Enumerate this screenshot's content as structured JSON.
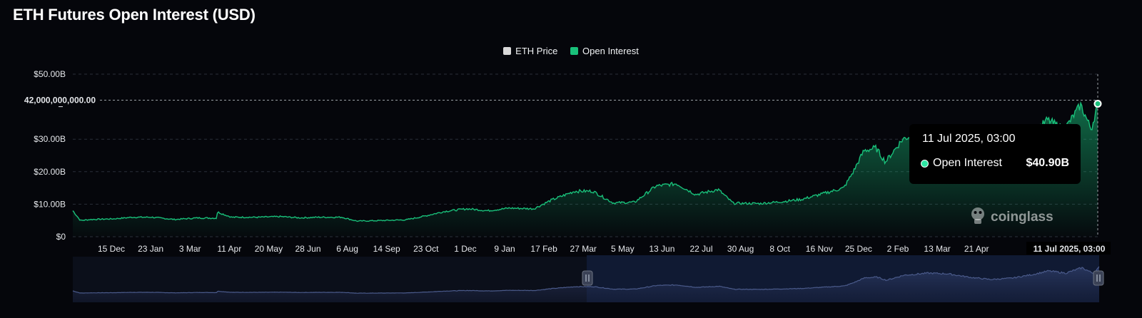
{
  "title": "ETH Futures Open Interest (USD)",
  "legend": [
    {
      "label": "ETH Price",
      "color": "#d9d9d9"
    },
    {
      "label": "Open Interest",
      "color": "#19c07a"
    }
  ],
  "crosshair": {
    "y_label": "42,000,000,000.00",
    "x_label": "11 Jul 2025, 03:00"
  },
  "tooltip": {
    "date": "11 Jul 2025, 03:00",
    "series": "Open Interest",
    "value": "$40.90B"
  },
  "watermark": "coinglass",
  "colors": {
    "accent": "#19c07a",
    "navigator_line": "#4a5a8a"
  },
  "chart_data": {
    "type": "area",
    "title": "ETH Futures Open Interest (USD)",
    "xlabel": "",
    "ylabel": "",
    "ylim": [
      0,
      50000000000
    ],
    "y_ticks": [
      "$0",
      "$10.00B",
      "$20.00B",
      "$30.00B",
      "$50.00B"
    ],
    "x_ticks": [
      "15 Dec",
      "23 Jan",
      "3 Mar",
      "11 Apr",
      "20 May",
      "28 Jun",
      "6 Aug",
      "14 Sep",
      "23 Oct",
      "1 Dec",
      "9 Jan",
      "17 Feb",
      "27 Mar",
      "5 May",
      "13 Jun",
      "22 Jul",
      "30 Aug",
      "8 Oct",
      "16 Nov",
      "25 Dec",
      "2 Feb",
      "13 Mar",
      "21 Apr"
    ],
    "legend_position": "top-center",
    "grid": true,
    "series": [
      {
        "name": "Open Interest",
        "color": "#19c07a",
        "x": [
          "2022-11-28",
          "2022-12-05",
          "2022-12-15",
          "2023-01-05",
          "2023-01-23",
          "2023-02-10",
          "2023-03-03",
          "2023-03-25",
          "2023-04-11",
          "2023-04-12",
          "2023-04-25",
          "2023-05-20",
          "2023-06-10",
          "2023-06-28",
          "2023-07-15",
          "2023-08-06",
          "2023-08-20",
          "2023-09-14",
          "2023-10-05",
          "2023-10-23",
          "2023-11-10",
          "2023-12-01",
          "2023-12-20",
          "2024-01-09",
          "2024-02-01",
          "2024-02-17",
          "2024-03-10",
          "2024-03-27",
          "2024-04-15",
          "2024-05-05",
          "2024-05-25",
          "2024-06-13",
          "2024-07-01",
          "2024-07-22",
          "2024-08-05",
          "2024-08-30",
          "2024-09-20",
          "2024-10-08",
          "2024-10-25",
          "2024-11-16",
          "2024-11-25",
          "2024-12-05",
          "2024-12-16",
          "2024-12-25",
          "2025-01-10",
          "2025-02-02",
          "2025-02-20",
          "2025-03-13",
          "2025-04-01",
          "2025-04-21",
          "2025-05-10",
          "2025-05-25",
          "2025-06-10",
          "2025-06-25",
          "2025-07-05",
          "2025-07-11"
        ],
        "values": [
          8000000000.0,
          5000000000.0,
          5300000000.0,
          5500000000.0,
          6000000000.0,
          6000000000.0,
          5300000000.0,
          5800000000.0,
          5700000000.0,
          7600000000.0,
          6000000000.0,
          6000000000.0,
          6200000000.0,
          5800000000.0,
          6000000000.0,
          6000000000.0,
          4800000000.0,
          5000000000.0,
          5200000000.0,
          6400000000.0,
          7800000000.0,
          8600000000.0,
          8000000000.0,
          8800000000.0,
          8600000000.0,
          11200000000.0,
          14000000000.0,
          14000000000.0,
          10400000000.0,
          10600000000.0,
          15600000000.0,
          16300000000.0,
          13000000000.0,
          14500000000.0,
          10300000000.0,
          10200000000.0,
          10800000000.0,
          11500000000.0,
          13000000000.0,
          15000000000.0,
          20000000000.0,
          26500000000.0,
          27300000000.0,
          23000000000.0,
          30000000000.0,
          33000000000.0,
          32000000000.0,
          27000000000.0,
          24000000000.0,
          26000000000.0,
          31000000000.0,
          36000000000.0,
          33000000000.0,
          40500000000.0,
          33000000000.0,
          40900000000.0
        ]
      }
    ]
  }
}
